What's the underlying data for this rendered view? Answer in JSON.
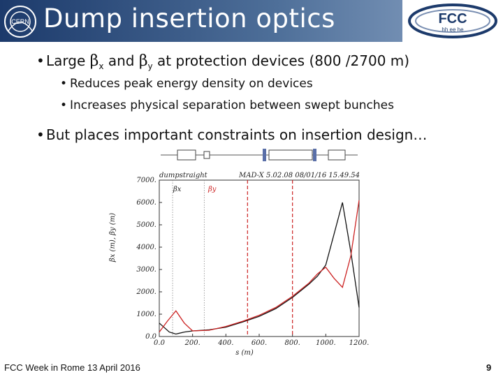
{
  "title": "Dump insertion optics",
  "bullets": {
    "b1": {
      "pre": "Large ",
      "beta1": "β",
      "sub1": "x",
      "mid": " and ",
      "beta2": "β",
      "sub2": "y",
      "post": " at protection devices (800 /2700 m)"
    },
    "b2": "Reduces peak energy density on devices",
    "b3": "Increases physical separation between swept bunches",
    "b4": "But places important constraints on insertion design…"
  },
  "plot": {
    "header_left": "dumpstraight",
    "header_right": "MAD-X 5.02.08  08/01/16 15.49.54",
    "ylabel": "βx (m), βy (m)",
    "xlabel": "s (m)",
    "label_bx": "βx",
    "label_by": "βy"
  },
  "chart_data": {
    "type": "line",
    "xlim": [
      0,
      1200
    ],
    "ylim": [
      0,
      7000
    ],
    "x_ticks": [
      "0.0",
      "200.",
      "400.",
      "600.",
      "800.",
      "1000.",
      "1200."
    ],
    "y_ticks": [
      "0.0",
      "1000.",
      "2000.",
      "3000.",
      "4000.",
      "5000.",
      "6000.",
      "7000."
    ],
    "series": [
      {
        "name": "βx",
        "color": "#111111",
        "x": [
          0,
          30,
          60,
          100,
          150,
          200,
          300,
          400,
          500,
          600,
          700,
          800,
          900,
          950,
          1000,
          1050,
          1100,
          1150,
          1200
        ],
        "y": [
          600,
          400,
          200,
          110,
          200,
          250,
          300,
          420,
          650,
          900,
          1250,
          1750,
          2350,
          2700,
          3200,
          4600,
          6000,
          3800,
          1300
        ]
      },
      {
        "name": "βy",
        "color": "#cc2222",
        "x": [
          0,
          50,
          100,
          150,
          200,
          300,
          400,
          500,
          600,
          700,
          800,
          900,
          950,
          1000,
          1050,
          1100,
          1150,
          1200
        ],
        "y": [
          200,
          700,
          1150,
          600,
          250,
          280,
          450,
          680,
          950,
          1300,
          1800,
          2400,
          2800,
          3100,
          2600,
          2200,
          3600,
          6100
        ]
      }
    ],
    "markers": [
      {
        "x": 80,
        "style": "dotted-black"
      },
      {
        "x": 270,
        "style": "dotted-black"
      },
      {
        "x": 530,
        "style": "dashed-red"
      },
      {
        "x": 800,
        "style": "dashed-red"
      }
    ]
  },
  "footer": "FCC Week in Rome 13 April 2016",
  "page_number": "9",
  "colors": {
    "header_dark": "#1c3a6b",
    "header_light": "#8ea6c6",
    "red": "#cc2222"
  },
  "icons": {
    "left_logo": "cern-logo",
    "right_logo": "fcc-logo"
  },
  "logo_text": {
    "cern": "CERN",
    "fcc": "FCC",
    "fcc_sub": "hh ee he"
  }
}
